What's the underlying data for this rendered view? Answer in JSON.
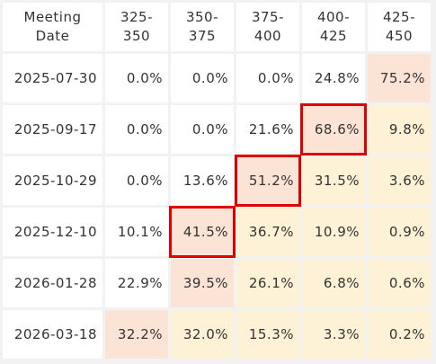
{
  "table": {
    "headers": [
      "Meeting\nDate",
      "325-\n350",
      "350-\n375",
      "375-\n400",
      "400-\n425",
      "425-\n450"
    ],
    "rows": [
      {
        "date": "2025-07-30",
        "values": [
          "0.0%",
          "0.0%",
          "0.0%",
          "24.8%",
          "75.2%"
        ],
        "bg": [
          "#ffffff",
          "#ffffff",
          "#ffffff",
          "#ffffff",
          "#fbe3d5"
        ],
        "highlight": -1
      },
      {
        "date": "2025-09-17",
        "values": [
          "0.0%",
          "0.0%",
          "21.6%",
          "68.6%",
          "9.8%"
        ],
        "bg": [
          "#ffffff",
          "#ffffff",
          "#ffffff",
          "#fbe3d5",
          "#fdf2d6"
        ],
        "highlight": 3
      },
      {
        "date": "2025-10-29",
        "values": [
          "0.0%",
          "13.6%",
          "51.2%",
          "31.5%",
          "3.6%"
        ],
        "bg": [
          "#ffffff",
          "#ffffff",
          "#fbe3d5",
          "#fdf2d6",
          "#fdf2d6"
        ],
        "highlight": 2
      },
      {
        "date": "2025-12-10",
        "values": [
          "10.1%",
          "41.5%",
          "36.7%",
          "10.9%",
          "0.9%"
        ],
        "bg": [
          "#ffffff",
          "#fbe3d5",
          "#fdf2d6",
          "#fdf2d6",
          "#fdf2d6"
        ],
        "highlight": 1
      },
      {
        "date": "2026-01-28",
        "values": [
          "22.9%",
          "39.5%",
          "26.1%",
          "6.8%",
          "0.6%"
        ],
        "bg": [
          "#ffffff",
          "#fbe3d5",
          "#fdf2d6",
          "#fdf2d6",
          "#fdf2d6"
        ],
        "highlight": -1
      },
      {
        "date": "2026-03-18",
        "values": [
          "32.2%",
          "32.0%",
          "15.3%",
          "3.3%",
          "0.2%"
        ],
        "bg": [
          "#fbe3d5",
          "#fdf2d6",
          "#fdf2d6",
          "#fdf2d6",
          "#fdf2d6"
        ],
        "highlight": -1
      }
    ]
  },
  "colors": {
    "highlight_border": "#e00000",
    "most_likely_fill": "#fbe3d5",
    "probable_fill": "#fdf2d6",
    "page_background": "#f2f2f2"
  }
}
